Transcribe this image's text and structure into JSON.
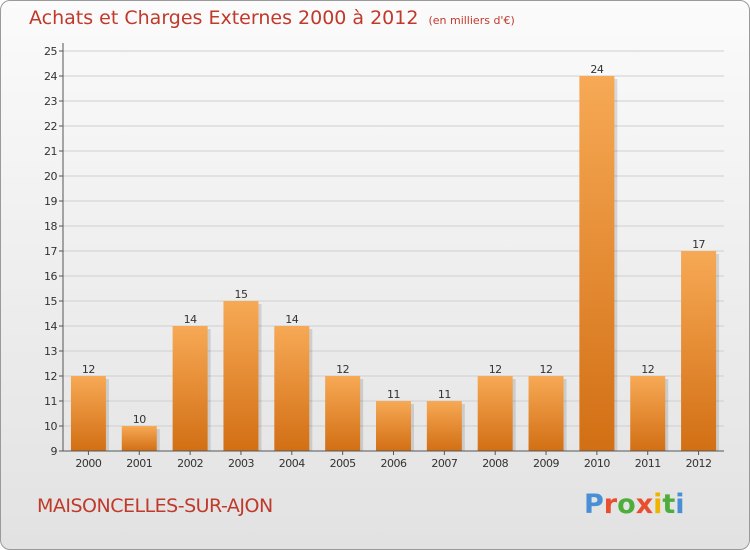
{
  "chart_data": {
    "type": "bar",
    "title": "Achats et Charges Externes 2000 à 2012",
    "subtitle": "(en milliers d'€)",
    "categories": [
      "2000",
      "2001",
      "2002",
      "2003",
      "2004",
      "2005",
      "2006",
      "2007",
      "2008",
      "2009",
      "2010",
      "2011",
      "2012"
    ],
    "values": [
      12,
      10,
      14,
      15,
      14,
      12,
      11,
      11,
      12,
      12,
      24,
      12,
      17
    ],
    "data_labels": [
      "12",
      "10",
      "14",
      "15",
      "14",
      "12",
      "11",
      "11",
      "12",
      "12",
      "24",
      "12",
      "17"
    ],
    "ylim": [
      9,
      25
    ],
    "yticks": [
      "9",
      "10",
      "11",
      "12",
      "13",
      "14",
      "15",
      "16",
      "17",
      "18",
      "19",
      "20",
      "21",
      "22",
      "23",
      "24",
      "25"
    ],
    "grid": true,
    "colors": {
      "bar_light": "#f7a955",
      "bar_dark": "#d26f14",
      "grid": "#cfcfcf",
      "axis": "#555555",
      "text": "#333333"
    }
  },
  "footer": {
    "commune": "MAISONCELLES-SUR-AJON",
    "logo_letters": [
      "P",
      "r",
      "o",
      "x",
      "i",
      "t",
      "i"
    ],
    "logo_colors": [
      "#4a8fd6",
      "#e94e2e",
      "#4fae3b",
      "#e94e2e",
      "#f0b400",
      "#4fae3b",
      "#4a8fd6"
    ]
  }
}
